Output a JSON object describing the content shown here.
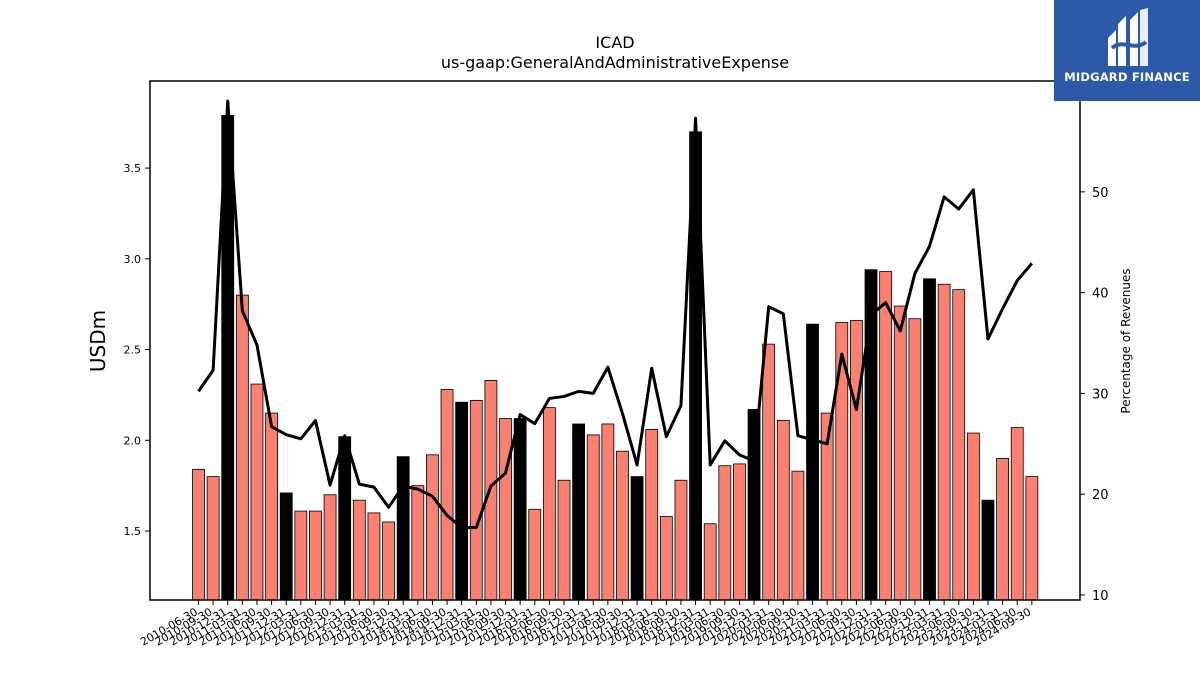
{
  "logo": {
    "text": "MIDGARD FINANCE"
  },
  "chart_data": {
    "type": "bar",
    "title": "ICAD",
    "subtitle": "us-gaap:GeneralAndAdministrativeExpense",
    "ylabel": "USDm",
    "y2label": "Percentage of Revenues",
    "ylim": [
      1.12,
      3.98
    ],
    "y2lim": [
      9.5,
      61
    ],
    "yticks": [
      1.5,
      2.0,
      2.5,
      3.0,
      3.5
    ],
    "y2ticks": [
      10,
      20,
      30,
      40,
      50
    ],
    "colors": {
      "quarter_bar": "#fa8072",
      "annual_bar": "#000000",
      "line": "#000000"
    },
    "categories": [
      "2010-06-30",
      "2010-09-30",
      "2010-12-31",
      "2011-03-31",
      "2011-06-30",
      "2011-09-30",
      "2011-12-31",
      "2012-03-31",
      "2012-06-30",
      "2012-09-30",
      "2012-12-31",
      "2013-03-31",
      "2013-06-30",
      "2013-09-30",
      "2013-12-31",
      "2014-03-31",
      "2014-06-30",
      "2014-09-30",
      "2014-12-31",
      "2015-03-31",
      "2015-06-30",
      "2015-09-30",
      "2015-12-31",
      "2016-03-31",
      "2016-06-30",
      "2016-09-30",
      "2016-12-31",
      "2017-03-31",
      "2017-06-30",
      "2017-09-30",
      "2017-12-31",
      "2018-03-31",
      "2018-06-30",
      "2018-09-30",
      "2018-12-31",
      "2019-03-31",
      "2019-06-30",
      "2019-09-30",
      "2019-12-31",
      "2020-03-31",
      "2020-06-30",
      "2020-09-30",
      "2020-12-31",
      "2021-03-31",
      "2021-06-30",
      "2021-09-30",
      "2021-12-31",
      "2022-03-31",
      "2022-06-30",
      "2022-09-30",
      "2022-12-31",
      "2023-03-31",
      "2023-06-30",
      "2023-09-30",
      "2023-12-31",
      "2024-03-31",
      "2024-06-30",
      "2024-09-30"
    ],
    "bar_values": [
      1.84,
      1.8,
      3.79,
      2.8,
      2.31,
      2.15,
      1.71,
      1.61,
      1.61,
      1.7,
      2.02,
      1.67,
      1.6,
      1.55,
      1.91,
      1.75,
      1.92,
      2.28,
      2.21,
      2.22,
      2.33,
      2.12,
      2.12,
      1.62,
      2.18,
      1.78,
      2.09,
      2.03,
      2.09,
      1.94,
      1.8,
      2.06,
      1.58,
      1.78,
      3.7,
      1.54,
      1.86,
      1.87,
      2.17,
      2.53,
      2.11,
      1.83,
      2.64,
      2.15,
      2.65,
      2.66,
      2.94,
      2.93,
      2.74,
      2.67,
      2.89,
      2.86,
      2.83,
      2.04,
      1.67,
      1.9,
      2.07,
      1.8
    ],
    "bar_type": [
      "q",
      "q",
      "a",
      "q",
      "q",
      "q",
      "a",
      "q",
      "q",
      "q",
      "a",
      "q",
      "q",
      "q",
      "a",
      "q",
      "q",
      "q",
      "a",
      "q",
      "q",
      "q",
      "a",
      "q",
      "q",
      "q",
      "a",
      "q",
      "q",
      "q",
      "a",
      "q",
      "q",
      "q",
      "a",
      "q",
      "q",
      "q",
      "a",
      "q",
      "q",
      "q",
      "a",
      "q",
      "q",
      "q",
      "a",
      "q",
      "q",
      "q",
      "a",
      "q",
      "q",
      "q",
      "a",
      "q",
      "q",
      "q"
    ],
    "pct_values": [
      30.2,
      32.3,
      59.0,
      38.2,
      34.8,
      26.7,
      25.9,
      25.5,
      27.3,
      20.9,
      25.8,
      21.0,
      20.7,
      18.7,
      20.8,
      20.5,
      19.8,
      17.9,
      16.7,
      16.7,
      20.8,
      22.1,
      27.9,
      27.0,
      29.5,
      29.7,
      30.2,
      30.0,
      32.6,
      28.0,
      22.9,
      32.5,
      25.7,
      28.8,
      57.3,
      22.9,
      25.3,
      23.9,
      23.3,
      38.6,
      37.9,
      25.8,
      25.4,
      25.0,
      33.9,
      28.4,
      37.8,
      39.0,
      36.2,
      41.9,
      44.6,
      49.5,
      48.3,
      50.2,
      35.4,
      38.4,
      41.2,
      42.9
    ]
  }
}
